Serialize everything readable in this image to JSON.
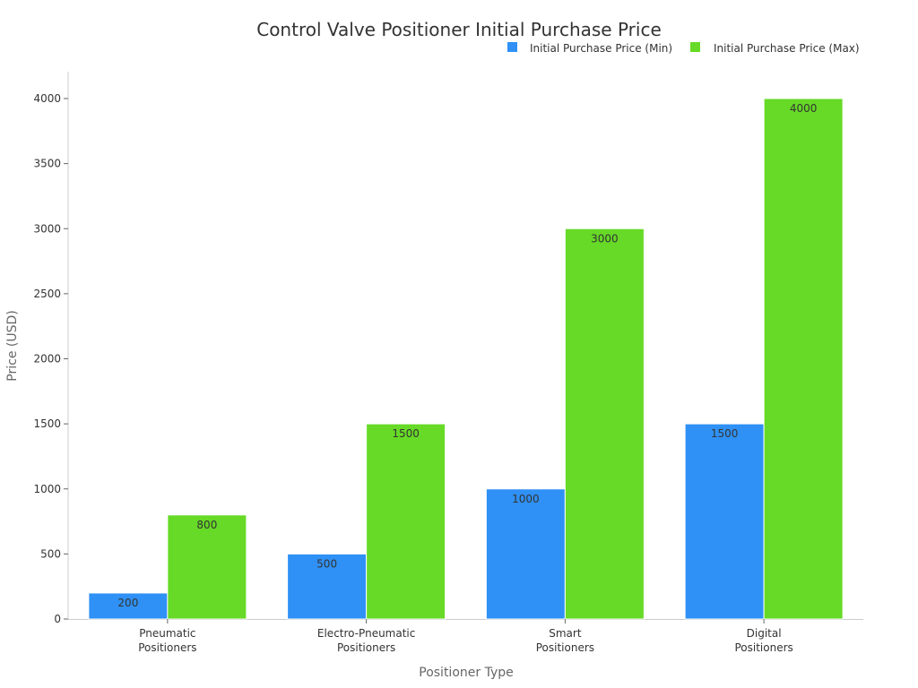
{
  "chart_data": {
    "type": "bar",
    "title": "Control Valve Positioner Initial Purchase Price",
    "xlabel": "Positioner Type",
    "ylabel": "Price (USD)",
    "categories": [
      [
        "Pneumatic",
        "Positioners"
      ],
      [
        "Electro-Pneumatic",
        "Positioners"
      ],
      [
        "Smart",
        "Positioners"
      ],
      [
        "Digital",
        "Positioners"
      ]
    ],
    "series": [
      {
        "name": "Initial Purchase Price (Min)",
        "color": "#2f91f5",
        "values": [
          200,
          500,
          1000,
          1500
        ]
      },
      {
        "name": "Initial Purchase Price (Max)",
        "color": "#66da26",
        "values": [
          800,
          1500,
          3000,
          4000
        ]
      }
    ],
    "ylim": [
      0,
      4000
    ],
    "yticks": [
      0,
      500,
      1000,
      1500,
      2000,
      2500,
      3000,
      3500,
      4000
    ],
    "grid": false,
    "legend_position": "top-right",
    "data_labels": true
  }
}
